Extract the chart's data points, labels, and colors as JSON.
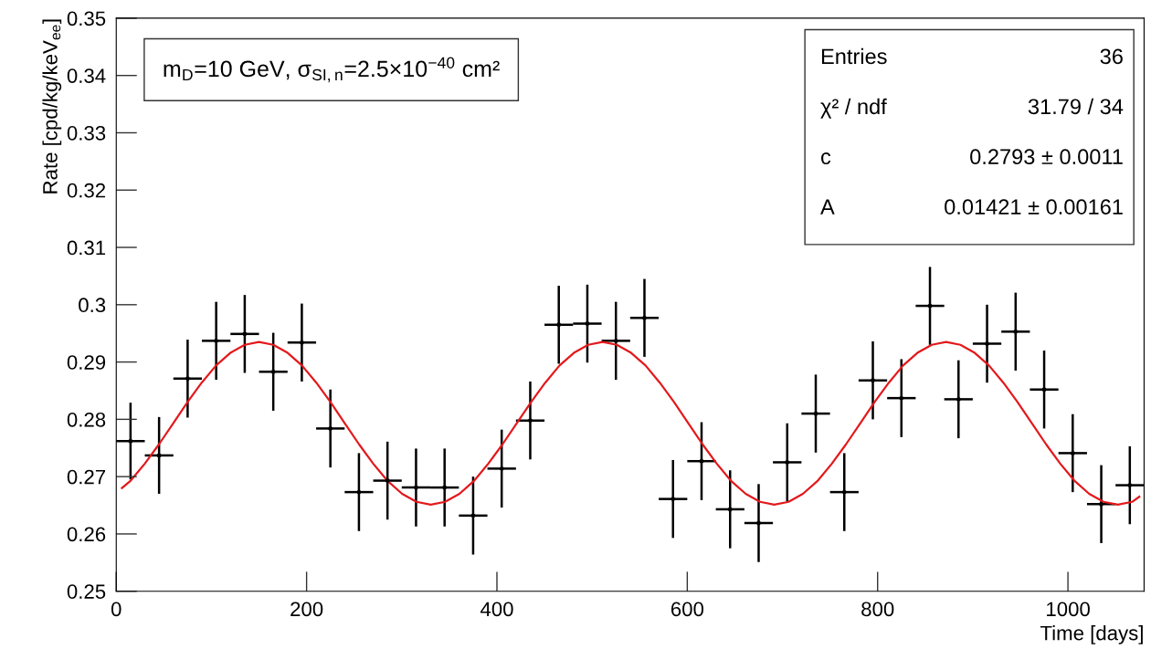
{
  "chart_data": {
    "type": "scatter",
    "xlabel": "Time [days]",
    "ylabel": "Rate [cpd/kg/keV$_{ee}$]",
    "xlim": [
      0,
      1080
    ],
    "ylim": [
      0.25,
      0.35
    ],
    "xticks": [
      0,
      200,
      400,
      600,
      800,
      1000
    ],
    "yticks": [
      0.25,
      0.26,
      0.27,
      0.28,
      0.29,
      0.3,
      0.31,
      0.32,
      0.33,
      0.34,
      0.35
    ],
    "grid": false,
    "legend": false,
    "annotations": [
      "m$_{D}$=10 GeV, σ$_{SI,n}$=2.5×10$^{−40}$ cm²",
      "Entries",
      "36",
      "χ² / ndf",
      "31.79 / 34",
      "c",
      "0.2793 ± 0.0011",
      "A",
      "0.01421 ± 0.00161"
    ],
    "series": [
      {
        "type": "scatter",
        "marker": "circle",
        "color": "#000000",
        "x": [
          15,
          45,
          75,
          105,
          135,
          165,
          195,
          225,
          255,
          285,
          315,
          345,
          375,
          405,
          435,
          465,
          495,
          525,
          555,
          585,
          615,
          645,
          675,
          705,
          735,
          765,
          795,
          825,
          855,
          885,
          915,
          945,
          975,
          1005,
          1035,
          1065
        ],
        "values": [
          0.2762,
          0.2737,
          0.2871,
          0.2937,
          0.2949,
          0.2883,
          0.2934,
          0.2784,
          0.2673,
          0.2693,
          0.2681,
          0.2681,
          0.2632,
          0.2714,
          0.2798,
          0.2965,
          0.2967,
          0.2937,
          0.2977,
          0.2661,
          0.2727,
          0.2643,
          0.2619,
          0.2725,
          0.281,
          0.2673,
          0.2868,
          0.2837,
          0.2998,
          0.2835,
          0.2932,
          0.2953,
          0.2852,
          0.2741,
          0.2652,
          0.2685
        ],
        "errors": [
          0.0067,
          0.0067,
          0.0068,
          0.0068,
          0.0068,
          0.0068,
          0.0068,
          0.0068,
          0.0068,
          0.0068,
          0.0068,
          0.0068,
          0.0068,
          0.0068,
          0.0068,
          0.0068,
          0.0068,
          0.0068,
          0.0068,
          0.0068,
          0.0068,
          0.0068,
          0.0068,
          0.0068,
          0.0068,
          0.0068,
          0.0068,
          0.0068,
          0.0068,
          0.0068,
          0.0068,
          0.0068,
          0.0068,
          0.0068,
          0.0068,
          0.0068
        ],
        "xerrors": [
          15,
          15,
          15,
          15,
          15,
          15,
          15,
          15,
          15,
          15,
          15,
          15,
          15,
          15,
          15,
          15,
          15,
          15,
          15,
          15,
          15,
          15,
          15,
          15,
          15,
          15,
          15,
          15,
          15,
          15,
          15,
          15,
          15,
          15,
          15,
          15
        ]
      },
      {
        "type": "line",
        "marker": "none",
        "line_style": "solid",
        "color": "#e3191c",
        "x": [
          6,
          14.6,
          29.7,
          44.7,
          59.8,
          74.8,
          89.8,
          104.9,
          119.9,
          135.0,
          150,
          165.0,
          180.1,
          195.1,
          210.2,
          225.2,
          240.2,
          255.3,
          270.3,
          285.4,
          300.4,
          315.4,
          330.5,
          345.5,
          360.6,
          375.6,
          390.6,
          405.7,
          420.7,
          435.8,
          450.8,
          465.8,
          480.9,
          495.9,
          511.0,
          526.0,
          541.0,
          556.1,
          571.1,
          586.2,
          601.2,
          616.2,
          631.3,
          646.3,
          661.4,
          676.4,
          691.4,
          706.5,
          721.5,
          736.6,
          751.6,
          766.6,
          781.7,
          796.7,
          811.8,
          826.8,
          841.8,
          856.9,
          871.9,
          887.0,
          902.0,
          917.0,
          932.1,
          947.1,
          962.2,
          977.2,
          992.2,
          1007.3,
          1022.3,
          1037.4,
          1052.4,
          1067.4,
          1075
        ],
        "values": [
          0.268,
          0.2692,
          0.2722,
          0.2756,
          0.2793,
          0.283,
          0.2864,
          0.2894,
          0.2916,
          0.293,
          0.2935,
          0.293,
          0.2916,
          0.2894,
          0.2864,
          0.283,
          0.2793,
          0.2756,
          0.2722,
          0.2692,
          0.267,
          0.2656,
          0.2651,
          0.2656,
          0.267,
          0.2692,
          0.2722,
          0.2756,
          0.2793,
          0.283,
          0.2864,
          0.2894,
          0.2916,
          0.293,
          0.2935,
          0.293,
          0.2916,
          0.2894,
          0.2864,
          0.283,
          0.2793,
          0.2756,
          0.2722,
          0.2692,
          0.267,
          0.2656,
          0.2651,
          0.2656,
          0.267,
          0.2692,
          0.2722,
          0.2756,
          0.2793,
          0.283,
          0.2864,
          0.2894,
          0.2916,
          0.293,
          0.2935,
          0.293,
          0.2916,
          0.2894,
          0.2864,
          0.283,
          0.2793,
          0.2756,
          0.2722,
          0.2692,
          0.267,
          0.2656,
          0.2651,
          0.2656,
          0.2665
        ]
      }
    ]
  }
}
